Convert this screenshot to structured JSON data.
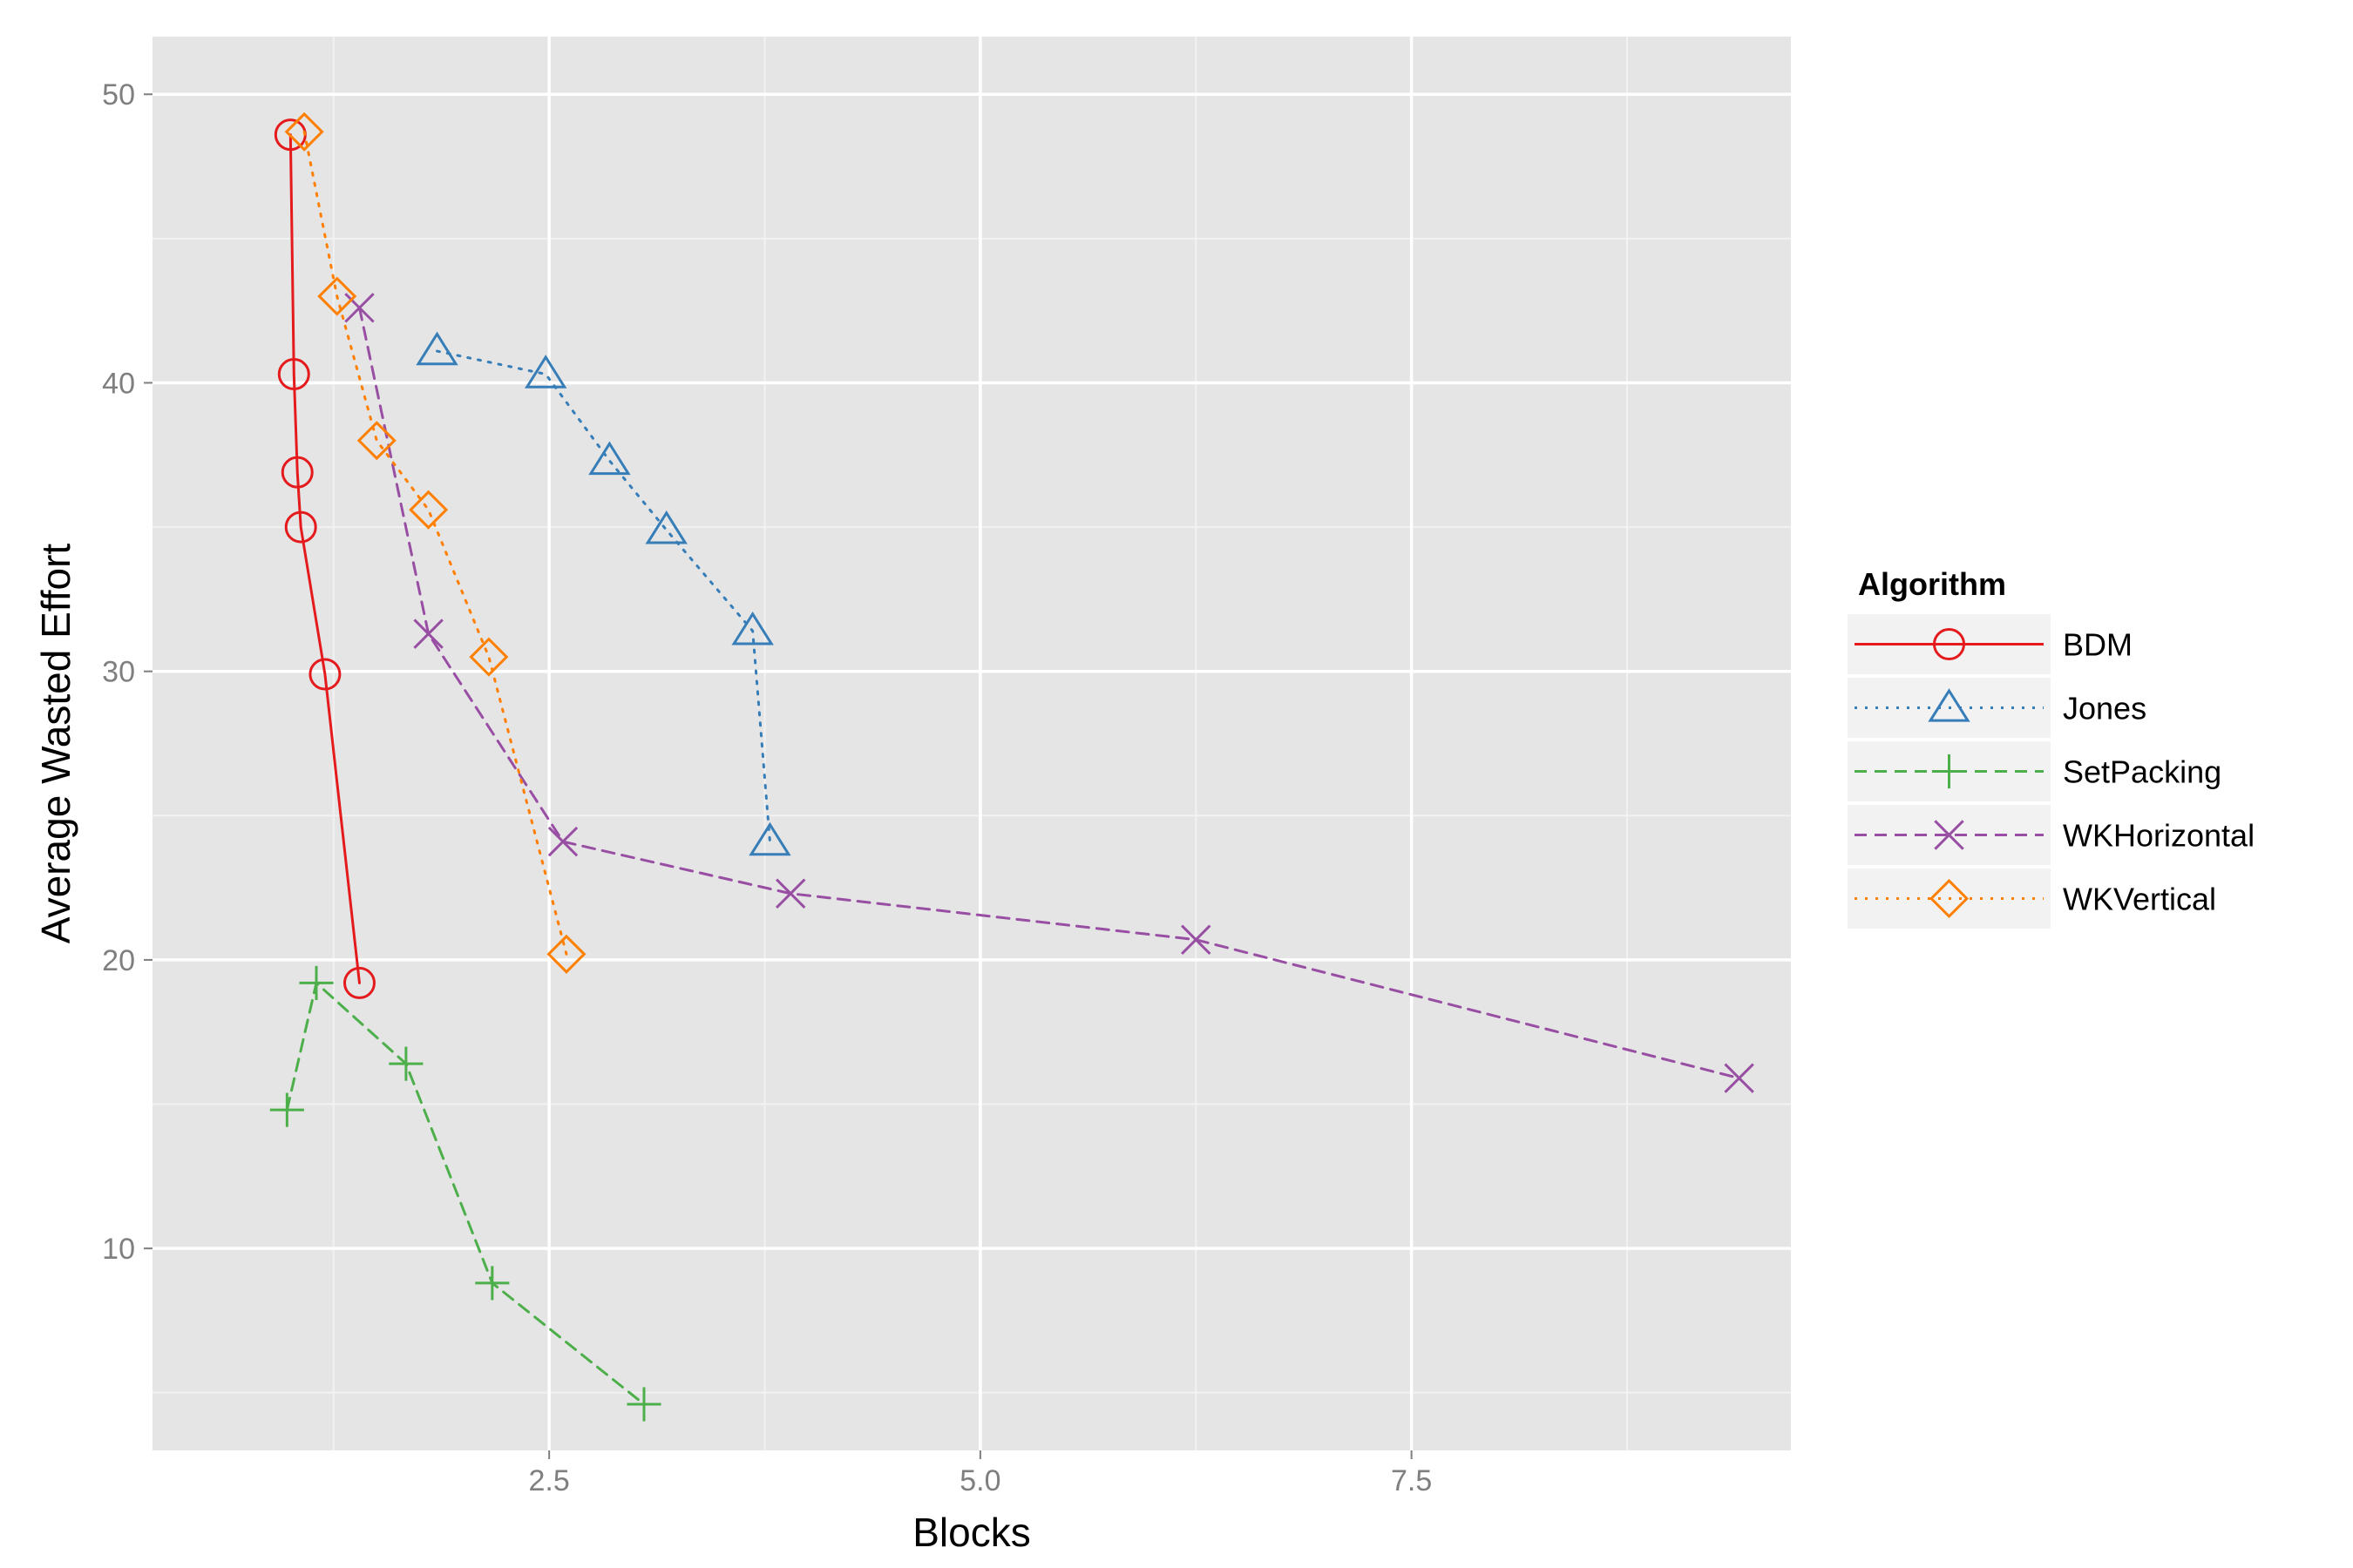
{
  "chart_data": {
    "type": "line",
    "title": "",
    "xlabel": "Blocks",
    "ylabel": "Average Wasted Effort",
    "xlim": [
      0.2,
      9.7
    ],
    "ylim": [
      3.0,
      52.0
    ],
    "x_ticks": [
      2.5,
      5.0,
      7.5
    ],
    "x_tick_labels": [
      "2.5",
      "5.0",
      "7.5"
    ],
    "y_ticks": [
      10,
      20,
      30,
      40,
      50
    ],
    "y_tick_labels": [
      "10",
      "20",
      "30",
      "40",
      "50"
    ],
    "grid": true,
    "panel_background": "#e5e5e5",
    "legend": {
      "title": "Algorithm",
      "position": "right"
    },
    "series": [
      {
        "name": "BDM",
        "color": "#e41a1c",
        "line": "solid",
        "marker": "circle",
        "x": [
          1.0,
          1.02,
          1.04,
          1.06,
          1.2,
          1.4
        ],
        "y": [
          48.6,
          40.3,
          36.9,
          35.0,
          29.9,
          19.2
        ]
      },
      {
        "name": "Jones",
        "color": "#377eb8",
        "line": "dotted",
        "marker": "triangle",
        "x": [
          1.85,
          2.48,
          2.85,
          3.18,
          3.68,
          3.78
        ],
        "y": [
          41.1,
          40.3,
          37.3,
          34.9,
          31.4,
          24.1
        ]
      },
      {
        "name": "SetPacking",
        "color": "#4daf4a",
        "line": "dashed",
        "marker": "plus",
        "x": [
          0.98,
          1.15,
          1.67,
          2.17,
          3.05
        ],
        "y": [
          14.8,
          19.2,
          16.4,
          8.8,
          4.6
        ]
      },
      {
        "name": "WKHorizontal",
        "color": "#984ea3",
        "line": "dashed",
        "marker": "x",
        "x": [
          1.4,
          1.8,
          2.58,
          3.9,
          6.25,
          9.4
        ],
        "y": [
          42.6,
          31.3,
          24.1,
          22.3,
          20.7,
          15.9
        ]
      },
      {
        "name": "WKVertical",
        "color": "#ff7f00",
        "line": "dotted",
        "marker": "diamond",
        "x": [
          1.08,
          1.27,
          1.5,
          1.8,
          2.15,
          2.6
        ],
        "y": [
          48.7,
          43.0,
          38.0,
          35.6,
          30.5,
          20.2
        ]
      }
    ]
  }
}
